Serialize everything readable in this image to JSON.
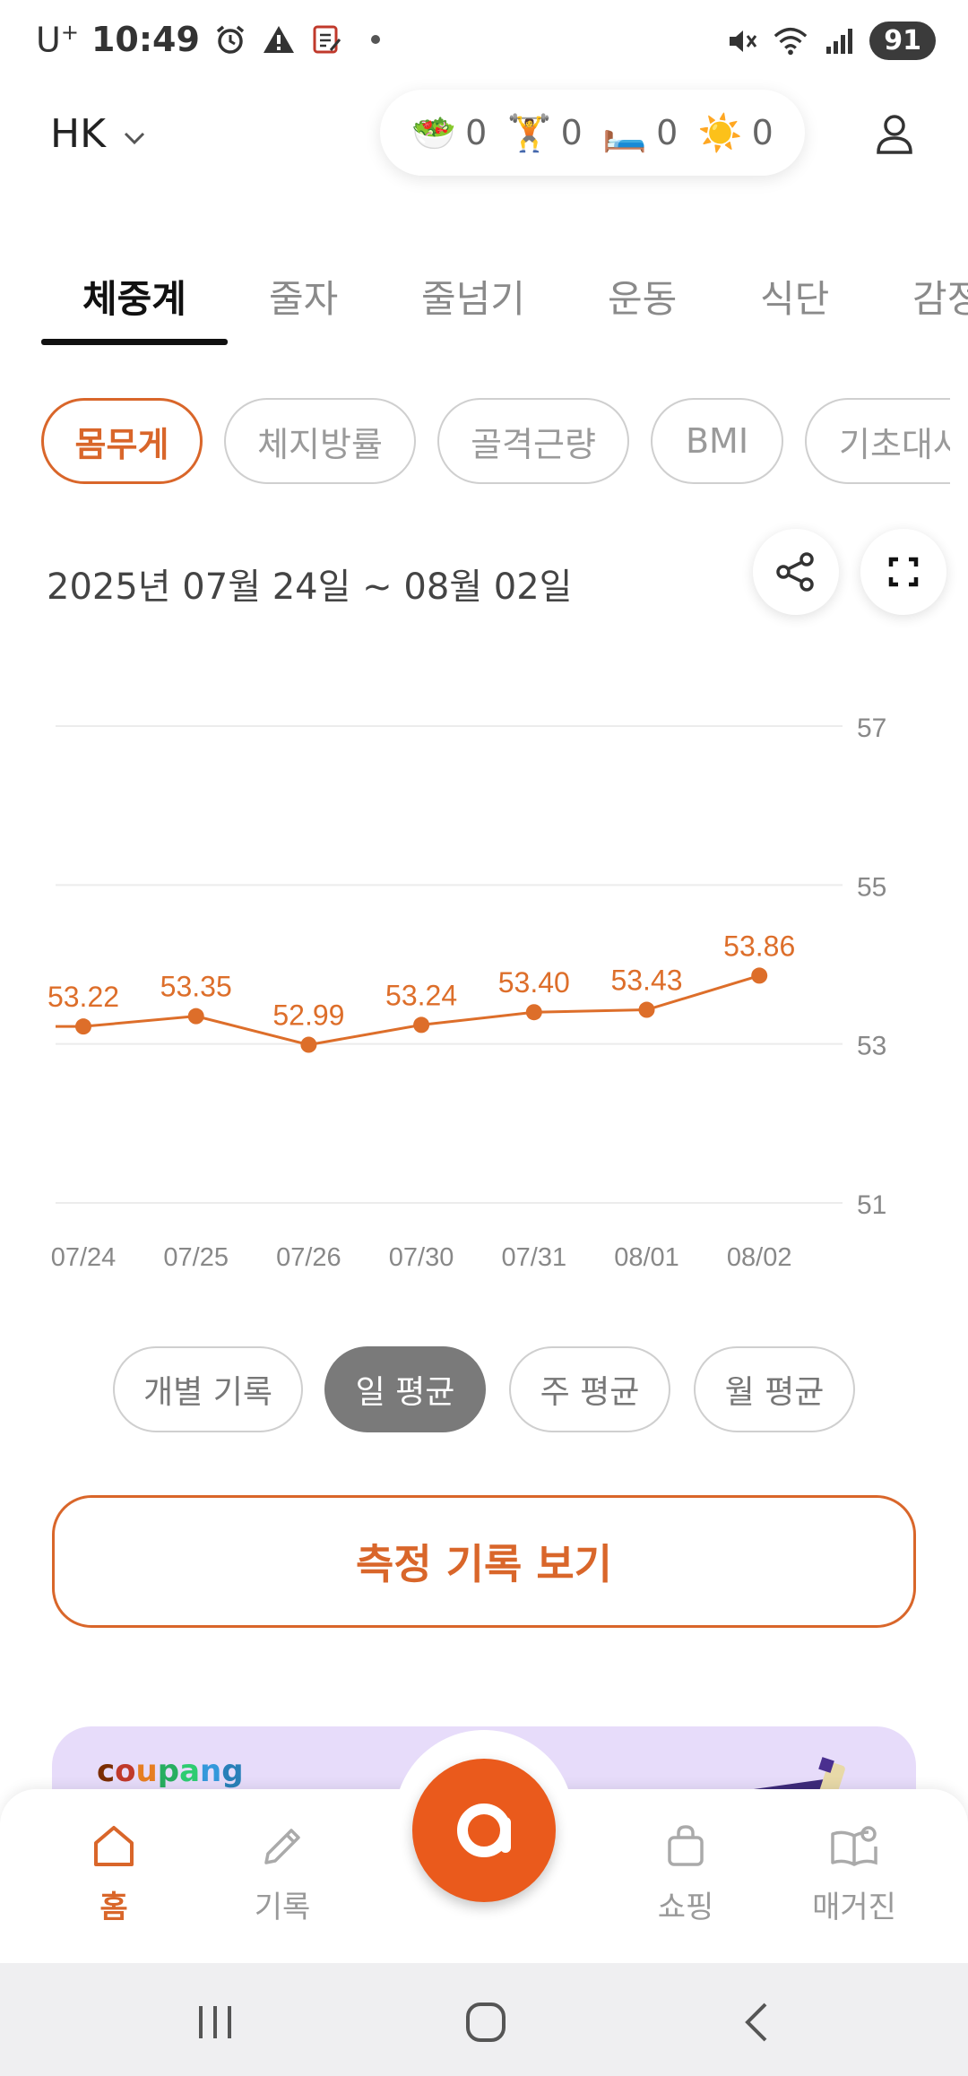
{
  "status_bar": {
    "carrier": "U",
    "carrier_sup": "+",
    "time": "10:49",
    "battery": "91"
  },
  "header": {
    "profile_name": "HK",
    "stats": [
      {
        "icon": "salad-icon",
        "emoji": "🥗",
        "value": "0"
      },
      {
        "icon": "weightlifting-icon",
        "emoji": "🏋️",
        "value": "0"
      },
      {
        "icon": "bed-icon",
        "emoji": "🛏️",
        "value": "0"
      },
      {
        "icon": "sun-icon",
        "emoji": "☀️",
        "value": "0"
      }
    ]
  },
  "tabs": [
    {
      "label": "체중계",
      "active": true
    },
    {
      "label": "줄자"
    },
    {
      "label": "줄넘기"
    },
    {
      "label": "운동"
    },
    {
      "label": "식단"
    },
    {
      "label": "감정"
    }
  ],
  "chips": [
    {
      "label": "몸무게",
      "active": true
    },
    {
      "label": "체지방률"
    },
    {
      "label": "골격근량"
    },
    {
      "label": "BMI"
    },
    {
      "label": "기초대사"
    }
  ],
  "date_range": "2025년 07월 24일 ~ 08월 02일",
  "chart_data": {
    "type": "line",
    "categories": [
      "07/24",
      "07/25",
      "07/26",
      "07/30",
      "07/31",
      "08/01",
      "08/02"
    ],
    "values": [
      53.22,
      53.35,
      52.99,
      53.24,
      53.4,
      53.43,
      53.86
    ],
    "labels": [
      "53.22",
      "53.35",
      "52.99",
      "53.24",
      "53.40",
      "53.43",
      "53.86"
    ],
    "yticks": [
      "57",
      "55",
      "53",
      "51"
    ],
    "ylim": [
      51,
      57
    ],
    "color": "#dd6e2a",
    "grid": true
  },
  "averaging": [
    {
      "label": "개별 기록"
    },
    {
      "label": "일 평균",
      "active": true
    },
    {
      "label": "주 평균"
    },
    {
      "label": "월 평균"
    }
  ],
  "view_records_label": "측정 기록 보기",
  "ad": {
    "logo": "coupang"
  },
  "bottom_nav": [
    {
      "label": "홈",
      "icon": "home-icon",
      "active": true
    },
    {
      "label": "기록",
      "icon": "pencil-icon"
    },
    {
      "label": "쇼핑",
      "icon": "shopping-bag-icon"
    },
    {
      "label": "매거진",
      "icon": "magazine-icon"
    }
  ],
  "colors": {
    "accent": "#d9662a",
    "fab": "#ea5a1c",
    "active_toggle": "#7a7a7a"
  }
}
